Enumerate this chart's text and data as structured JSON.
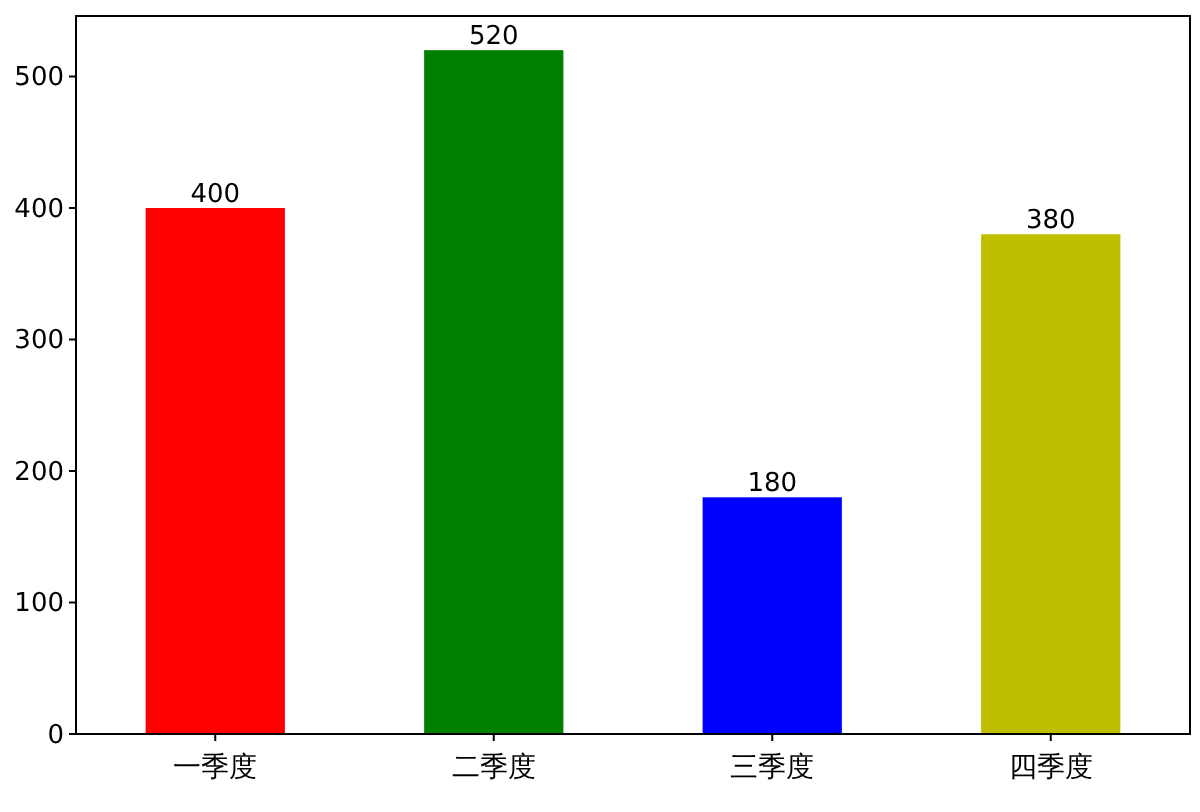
{
  "chart_data": {
    "type": "bar",
    "categories": [
      "一季度",
      "二季度",
      "三季度",
      "四季度"
    ],
    "values": [
      400,
      520,
      180,
      380
    ],
    "colors": [
      "#ff0000",
      "#008000",
      "#0000ff",
      "#bfbf00"
    ],
    "ylim": [
      0,
      546
    ],
    "yticks": [
      0,
      100,
      200,
      300,
      400,
      500
    ],
    "data_labels": true
  }
}
